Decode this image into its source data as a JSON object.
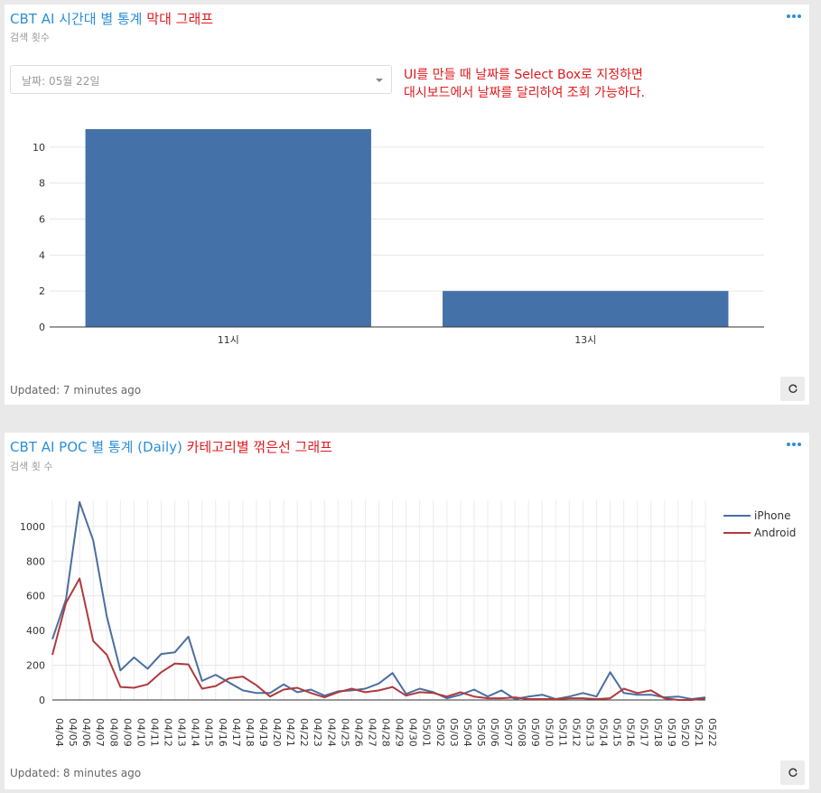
{
  "panel1": {
    "title": "CBT AI 시간대 별 통계",
    "title_note": "막대 그래프",
    "subtitle": "검색 횟수",
    "select": {
      "value": "날짜: 05월 22일"
    },
    "note_line1": "UI를 만들 때 날짜를 Select Box로 지정하면",
    "note_line2": "대시보드에서 날짜를 달리하여 조회 가능하다.",
    "updated": "Updated: 7 minutes ago"
  },
  "panel2": {
    "title": "CBT AI POC 별 통계 (Daily)",
    "title_note": "카테고리별 꺾은선 그래프",
    "subtitle": "검색 횟 수",
    "updated": "Updated: 8 minutes ago"
  },
  "colors": {
    "title": "#2b8fd6",
    "note": "#e0191e",
    "bar": "#4472a8",
    "iphone": "#4a6fa0",
    "android": "#b03a3e"
  },
  "chart_data": [
    {
      "type": "bar",
      "categories": [
        "11시",
        "13시"
      ],
      "values": [
        11,
        2
      ],
      "ylim": [
        0,
        11
      ],
      "yticks": [
        0,
        2,
        4,
        6,
        8,
        10
      ],
      "grid": true
    },
    {
      "type": "line",
      "x": [
        "04/04",
        "04/05",
        "04/06",
        "04/07",
        "04/08",
        "04/09",
        "04/10",
        "04/11",
        "04/12",
        "04/13",
        "04/14",
        "04/15",
        "04/16",
        "04/17",
        "04/18",
        "04/19",
        "04/20",
        "04/21",
        "04/22",
        "04/23",
        "04/24",
        "04/25",
        "04/26",
        "04/27",
        "04/28",
        "04/29",
        "04/30",
        "05/01",
        "05/02",
        "05/03",
        "05/04",
        "05/05",
        "05/06",
        "05/07",
        "05/08",
        "05/09",
        "05/10",
        "05/11",
        "05/12",
        "05/13",
        "05/14",
        "05/15",
        "05/16",
        "05/17",
        "05/18",
        "05/19",
        "05/20",
        "05/21",
        "05/22"
      ],
      "series": [
        {
          "name": "iPhone",
          "values": [
            350,
            580,
            1140,
            920,
            480,
            170,
            245,
            180,
            265,
            275,
            365,
            110,
            145,
            100,
            55,
            40,
            40,
            90,
            45,
            60,
            25,
            50,
            55,
            65,
            95,
            155,
            35,
            65,
            45,
            10,
            30,
            60,
            20,
            55,
            5,
            20,
            30,
            5,
            20,
            40,
            20,
            160,
            40,
            30,
            30,
            15,
            20,
            5,
            15
          ]
        },
        {
          "name": "Android",
          "values": [
            260,
            560,
            700,
            340,
            260,
            75,
            70,
            90,
            160,
            210,
            205,
            65,
            80,
            125,
            135,
            85,
            20,
            60,
            70,
            40,
            15,
            45,
            65,
            45,
            55,
            75,
            25,
            45,
            40,
            20,
            45,
            20,
            10,
            10,
            15,
            5,
            5,
            5,
            10,
            10,
            5,
            10,
            65,
            40,
            55,
            10,
            0,
            0,
            10
          ]
        }
      ],
      "ylim": [
        0,
        1150
      ],
      "yticks": [
        0,
        200,
        400,
        600,
        800,
        1000
      ],
      "legend": "top-right",
      "grid": true
    }
  ]
}
